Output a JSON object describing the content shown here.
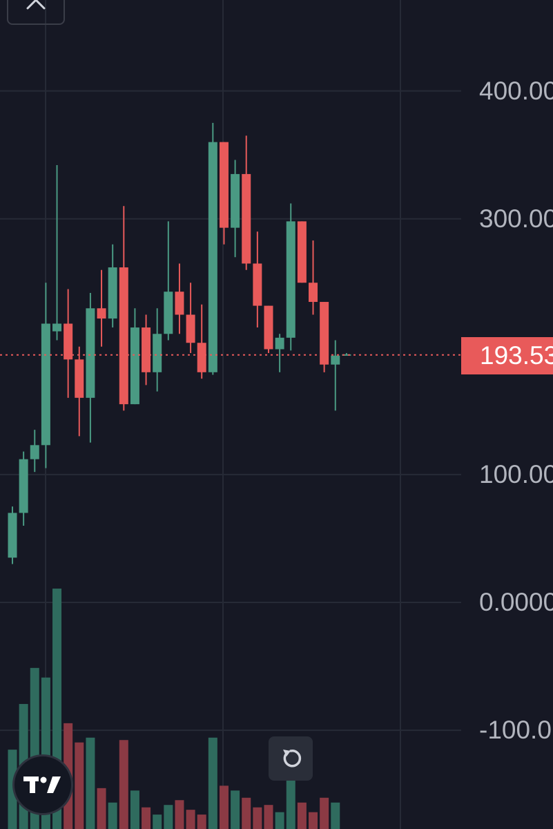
{
  "chart_data": {
    "type": "candlestick",
    "ylim": [
      -180,
      475
    ],
    "price_axis": {
      "ticks": [
        "400.00",
        "300.00",
        "100.00",
        "0.0000",
        "-100.0"
      ]
    },
    "last_price": {
      "value": 193.53,
      "label": "193.53"
    },
    "colors": {
      "up": "#4a9a83",
      "down": "#e85a5a",
      "up_volume": "#2f6b5e",
      "down_volume": "#8b3a44"
    },
    "grid": true,
    "candles": [
      {
        "o": 35,
        "h": 75,
        "l": 30,
        "c": 70,
        "v": 0.33
      },
      {
        "o": 70,
        "h": 118,
        "l": 60,
        "c": 112,
        "v": 0.52
      },
      {
        "o": 112,
        "h": 135,
        "l": 102,
        "c": 123,
        "v": 0.67
      },
      {
        "o": 123,
        "h": 250,
        "l": 105,
        "c": 218,
        "v": 0.63
      },
      {
        "o": 212,
        "h": 342,
        "l": 205,
        "c": 218,
        "v": 1.0
      },
      {
        "o": 218,
        "h": 245,
        "l": 160,
        "c": 190,
        "v": 0.44
      },
      {
        "o": 190,
        "h": 200,
        "l": 130,
        "c": 160,
        "v": 0.36
      },
      {
        "o": 160,
        "h": 242,
        "l": 125,
        "c": 230,
        "v": 0.38
      },
      {
        "o": 230,
        "h": 260,
        "l": 200,
        "c": 222,
        "v": 0.17
      },
      {
        "o": 222,
        "h": 280,
        "l": 215,
        "c": 262,
        "v": 0.11
      },
      {
        "o": 262,
        "h": 310,
        "l": 150,
        "c": 155,
        "v": 0.37
      },
      {
        "o": 155,
        "h": 230,
        "l": 155,
        "c": 215,
        "v": 0.16
      },
      {
        "o": 215,
        "h": 225,
        "l": 170,
        "c": 180,
        "v": 0.09
      },
      {
        "o": 180,
        "h": 230,
        "l": 165,
        "c": 210,
        "v": 0.06
      },
      {
        "o": 210,
        "h": 298,
        "l": 205,
        "c": 243,
        "v": 0.1
      },
      {
        "o": 243,
        "h": 265,
        "l": 210,
        "c": 225,
        "v": 0.12
      },
      {
        "o": 225,
        "h": 250,
        "l": 195,
        "c": 203,
        "v": 0.08
      },
      {
        "o": 203,
        "h": 233,
        "l": 175,
        "c": 180,
        "v": 0.06
      },
      {
        "o": 180,
        "h": 375,
        "l": 178,
        "c": 360,
        "v": 0.38
      },
      {
        "o": 360,
        "h": 360,
        "l": 280,
        "c": 293,
        "v": 0.18
      },
      {
        "o": 293,
        "h": 346,
        "l": 270,
        "c": 335,
        "v": 0.16
      },
      {
        "o": 335,
        "h": 365,
        "l": 260,
        "c": 265,
        "v": 0.13
      },
      {
        "o": 265,
        "h": 290,
        "l": 215,
        "c": 232,
        "v": 0.09
      },
      {
        "o": 232,
        "h": 232,
        "l": 195,
        "c": 198,
        "v": 0.1
      },
      {
        "o": 198,
        "h": 210,
        "l": 180,
        "c": 207,
        "v": 0.07
      },
      {
        "o": 207,
        "h": 312,
        "l": 197,
        "c": 298,
        "v": 0.3
      },
      {
        "o": 298,
        "h": 298,
        "l": 250,
        "c": 250,
        "v": 0.11
      },
      {
        "o": 250,
        "h": 283,
        "l": 225,
        "c": 235,
        "v": 0.07
      },
      {
        "o": 235,
        "h": 235,
        "l": 180,
        "c": 186,
        "v": 0.13
      },
      {
        "o": 186,
        "h": 205,
        "l": 150,
        "c": 193,
        "v": 0.11
      },
      {
        "o": 193,
        "h": 195,
        "l": 193,
        "c": 194,
        "v": 0.0
      }
    ]
  },
  "icons": {
    "close": "close-icon",
    "reset": "reset-chart-icon",
    "logo": "tradingview-logo"
  }
}
